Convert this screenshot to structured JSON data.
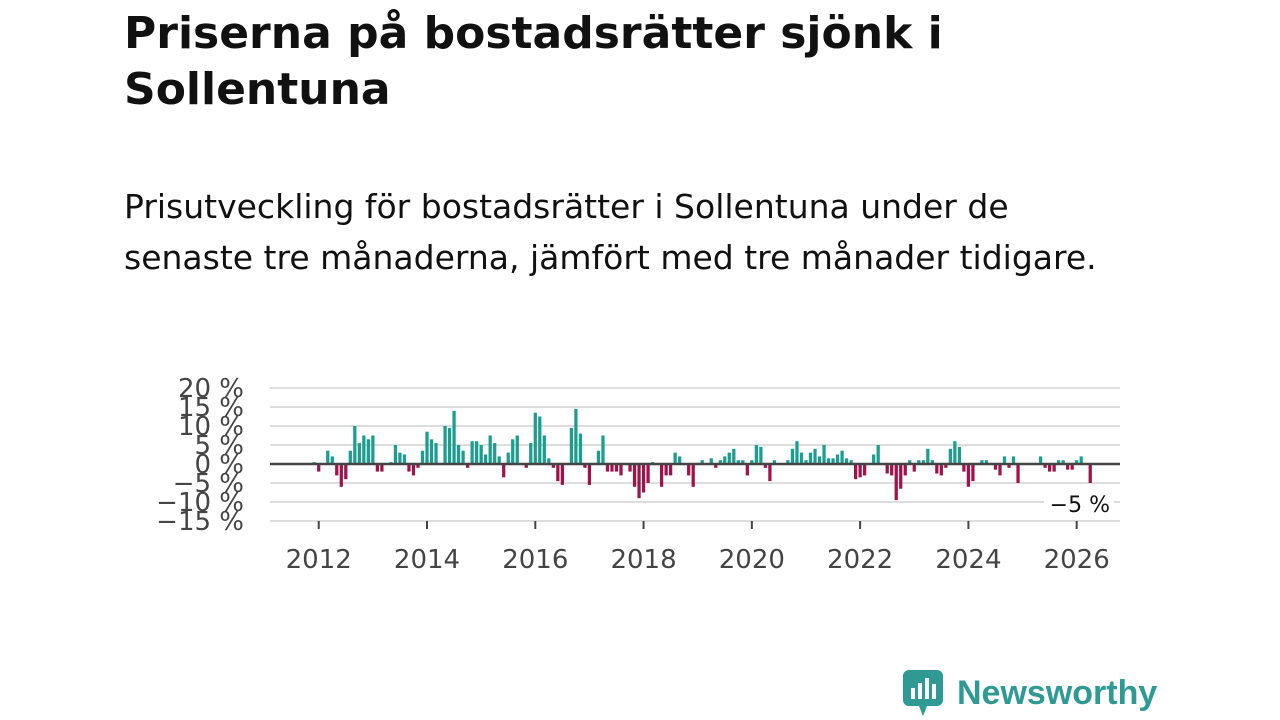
{
  "header": {
    "title": "Priserna på bostadsrätter sjönk i Sollentuna",
    "subtitle": "Prisutveckling för bostadsrätter i Sollentuna under de senaste tre månaderna, jämfört med tre månader tidigare."
  },
  "brand": {
    "name": "Newsworthy"
  },
  "colors": {
    "positive": "#1a9e8f",
    "negative": "#a0124a",
    "grid": "#dddddd",
    "zero_line": "#444444"
  },
  "chart_data": {
    "type": "bar",
    "title": "Priserna på bostadsrätter sjönk i Sollentuna",
    "xlabel": "",
    "ylabel": "",
    "unit": "%",
    "ylim": [
      -15,
      20
    ],
    "yticks": [
      20,
      15,
      10,
      5,
      0,
      -5,
      -10,
      -15
    ],
    "ytick_labels": [
      "20 %",
      "15 %",
      "10 %",
      "5 %",
      "0 %",
      "−5 %",
      "−10 %",
      "−15 %"
    ],
    "xlim": [
      2011.1,
      2026.8
    ],
    "xticks": [
      2012,
      2014,
      2016,
      2018,
      2020,
      2022,
      2024,
      2026
    ],
    "xtick_labels": [
      "2012",
      "2014",
      "2016",
      "2018",
      "2020",
      "2022",
      "2024",
      "2026"
    ],
    "start": {
      "year": 2011,
      "month": 12
    },
    "values": [
      0.5,
      -2,
      0,
      3.5,
      2,
      -3,
      -6,
      -4,
      3.5,
      10,
      5.5,
      7.5,
      6.5,
      7.5,
      -2,
      -2,
      0,
      0.5,
      5,
      3,
      2.5,
      -2,
      -3,
      -1,
      3.5,
      8.5,
      6.5,
      5.5,
      0,
      10,
      9.5,
      14,
      5,
      3.5,
      -1,
      6,
      6,
      5,
      2.5,
      7.5,
      5.5,
      2,
      -3.5,
      3,
      6.5,
      7.5,
      0,
      -1,
      5.5,
      13.5,
      12.5,
      7.5,
      1.5,
      -1,
      -4.5,
      -5.5,
      0,
      9.5,
      14.5,
      8,
      -1,
      -5.5,
      0,
      3.5,
      7.5,
      -2,
      -2,
      -2,
      -3,
      0,
      -2,
      -6,
      -9,
      -7.5,
      -5,
      0.5,
      0,
      -6,
      -3,
      -3,
      3,
      2,
      0,
      -3,
      -6,
      0,
      1,
      0,
      1.5,
      -1,
      1,
      2,
      3,
      4,
      1,
      1,
      -3,
      1,
      5,
      4.5,
      -1,
      -4.5,
      1,
      0,
      0,
      1,
      4,
      6,
      3,
      1,
      3,
      4,
      2,
      5,
      1.5,
      1.5,
      2.5,
      3.5,
      1.5,
      1,
      -4,
      -3.5,
      -3,
      0,
      2.5,
      5,
      0,
      -2.5,
      -3,
      -9.5,
      -6.5,
      -3,
      1,
      -2,
      1,
      1,
      4,
      1,
      -2.5,
      -3,
      -1,
      4,
      6,
      4.5,
      -2,
      -6,
      -4.5,
      0,
      1,
      1,
      0,
      -1.5,
      -3,
      2,
      -1,
      2,
      -5,
      0,
      0,
      0,
      0,
      2,
      -1,
      -2,
      -2,
      1,
      1,
      -1.5,
      -1.5,
      1,
      2,
      0,
      -5
    ],
    "last_value_label": "−5 %"
  }
}
